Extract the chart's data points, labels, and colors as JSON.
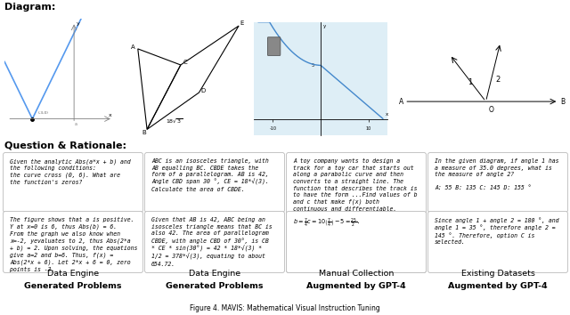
{
  "title": "Diagram:",
  "subtitle": "Question & Rationale:",
  "footer": "Figure 4. MAVIS: Mathematical Visual Instruction Tuning",
  "bg_color": "#ffffff",
  "col_titles": [
    [
      "Data Engine",
      "Generated Problems"
    ],
    [
      "Data Engine",
      "Generated Problems"
    ],
    [
      "Manual Collection",
      "Augmented by GPT-4"
    ],
    [
      "Existing Datasets",
      "Augmented by GPT-4"
    ]
  ],
  "question_texts": [
    "Given the analytic Abs(a*x + b) and\nthe following conditions:\nthe curve cross (0, 6). What are\nthe function's zeros?",
    "ABC is an isosceles triangle, with\nAB equalling BC. CBDE takes the\nform of a parallelogram. AB is 42,\nAngle CBD span 30 °, CE = 18*√(3).\nCalculate the area of CBDE.",
    "A toy company wants to design a\ntrack for a toy car that starts out\nalong a parabolic curve and then\nconverts to a straight line. The\nfunction that describes the track is\nto have the form ...Find values of b\nand c that make f(x) both\ncontinuous and differentiable.",
    "In the given diagram, if angle 1 has\na measure of 35.0 degrees, what is\nthe measure of angle 2?\n\nA: 55 B: 135 C: 145 D: 155 °"
  ],
  "rationale_texts": [
    "The figure shows that a is positive.\nY at x=0 is 6, thus Abs(b) = 6.\nFrom the graph we also know when\nx=-2, yevaluates to 2, thus Abs(2*a\n+ b) = 2. Upon solving, the equations\ngive a=2 and b=6. Thus, f(x) =\nAbs(2*x + 6). Let 2*x + 6 = 0, zero\npoints is -3.",
    "Given that AB is 42, ABC being an\nisosceles triangle means that BC is\nalso 42. The area of parallelogram\nCBDE, with angle CBD of 30°, is CB\n* CE * sin(30°) = 42 * 18*√(3) *\n1/2 = 378*√(3), equating to about\n654.72.",
    "$b=\\frac{7}{4}$$c=10\\left(\\frac{7}{4}\\right)-5=\\frac{25}{2}$.",
    "Since angle 1 + angle 2 = 180 °, and\nangle 1 = 35 °, therefore angle 2 =\n145 °. Therefore, option C is\nselected."
  ],
  "col3_q_single": true,
  "col4_split": true
}
